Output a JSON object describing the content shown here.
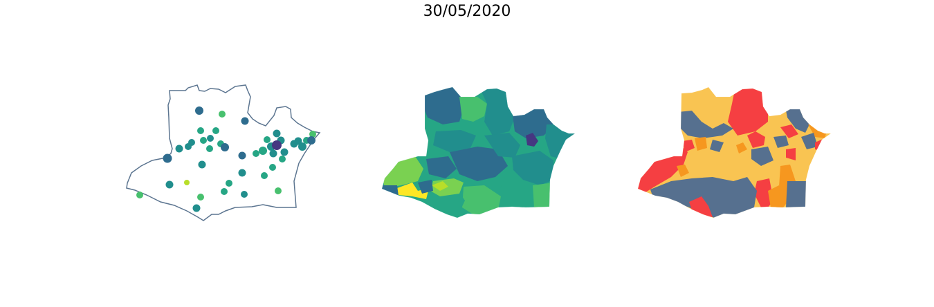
{
  "figure": {
    "title": "30/05/2020"
  },
  "panels": [
    {
      "kind": "point-map",
      "outline_color": "#5c7590"
    },
    {
      "kind": "choropleth",
      "colormap": "viridis"
    },
    {
      "kind": "choropleth",
      "palette": [
        "#f9c452",
        "#f6971f",
        "#f53f42",
        "#56708f"
      ]
    }
  ],
  "colors": {
    "v_purple": "#453781",
    "v_blue": "#2e6c8e",
    "v_teal": "#218e8d",
    "v_green": "#26a685",
    "v_lightgreen": "#48c06e",
    "v_lime": "#7ad151",
    "v_yellowgreen": "#b8de29",
    "v_yellow": "#fde725",
    "yellow": "#f9c452",
    "orange": "#f6971f",
    "red": "#f53f42",
    "slate": "#56708f"
  }
}
